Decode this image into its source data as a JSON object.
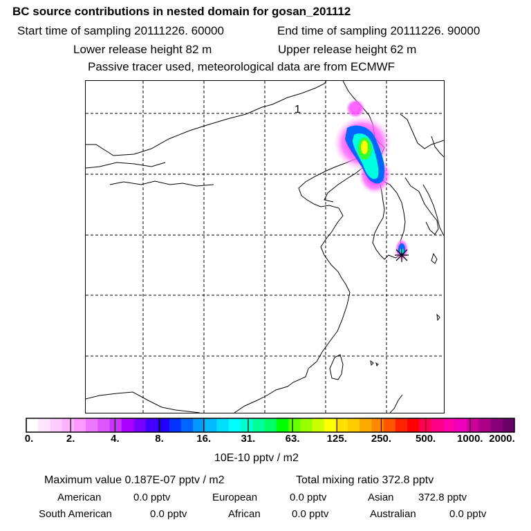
{
  "header": {
    "title": "BC  source contributions in nested domain for gosan_201112",
    "start_time": "Start time of sampling 20111226. 60000",
    "end_time": "End time of sampling 20111226. 90000",
    "lower_release": "Lower release height   82 m",
    "upper_release": "Upper release height   62 m",
    "tracer_note": "Passive tracer used, meteorological data are from ECMWF"
  },
  "map": {
    "label": "1",
    "receptor": "gosan",
    "plume_colors": {
      "outer": "#e000ff",
      "mid": "#0066ff",
      "cyan": "#00ffe0",
      "green": "#33ff33",
      "yellow": "#ffff00"
    }
  },
  "colorbar": {
    "colors": [
      "#ffffff",
      "#ffe6ff",
      "#ffccff",
      "#ffb3ff",
      "#ff99ff",
      "#ee77ff",
      "#dd55ff",
      "#cc33ff",
      "#aa00ff",
      "#7700ff",
      "#4400ff",
      "#2200ff",
      "#0033ff",
      "#0066ff",
      "#0099ff",
      "#00bbff",
      "#00ddff",
      "#00ffff",
      "#00ffcc",
      "#00ff99",
      "#00ff66",
      "#00ff00",
      "#66ff00",
      "#99ff00",
      "#ccff00",
      "#ffff00",
      "#ffe000",
      "#ffcc00",
      "#ffaa00",
      "#ff8800",
      "#ff5500",
      "#ff2200",
      "#ff0000",
      "#ff0055",
      "#ff0088",
      "#ff00aa",
      "#ee00bb",
      "#cc0099",
      "#aa0088",
      "#880077",
      "#660066"
    ],
    "ticks": [
      "0.",
      "2.",
      "4.",
      "8.",
      "16.",
      "31.",
      "63.",
      "125.",
      "250.",
      "500.",
      "1000.",
      "2000."
    ],
    "units": "10E-10 pptv / m2"
  },
  "stats": {
    "maximum_value": "Maximum value  0.187E-07 pptv / m2",
    "total_mixing_ratio": "Total mixing ratio     372.8 pptv",
    "regions": [
      {
        "name": "American",
        "value": "0.0 pptv"
      },
      {
        "name": "European",
        "value": "0.0 pptv"
      },
      {
        "name": "Asian",
        "value": "372.8 pptv"
      },
      {
        "name": "South American",
        "value": "0.0 pptv"
      },
      {
        "name": "African",
        "value": "0.0 pptv"
      },
      {
        "name": "Australian",
        "value": "0.0 pptv"
      }
    ]
  }
}
